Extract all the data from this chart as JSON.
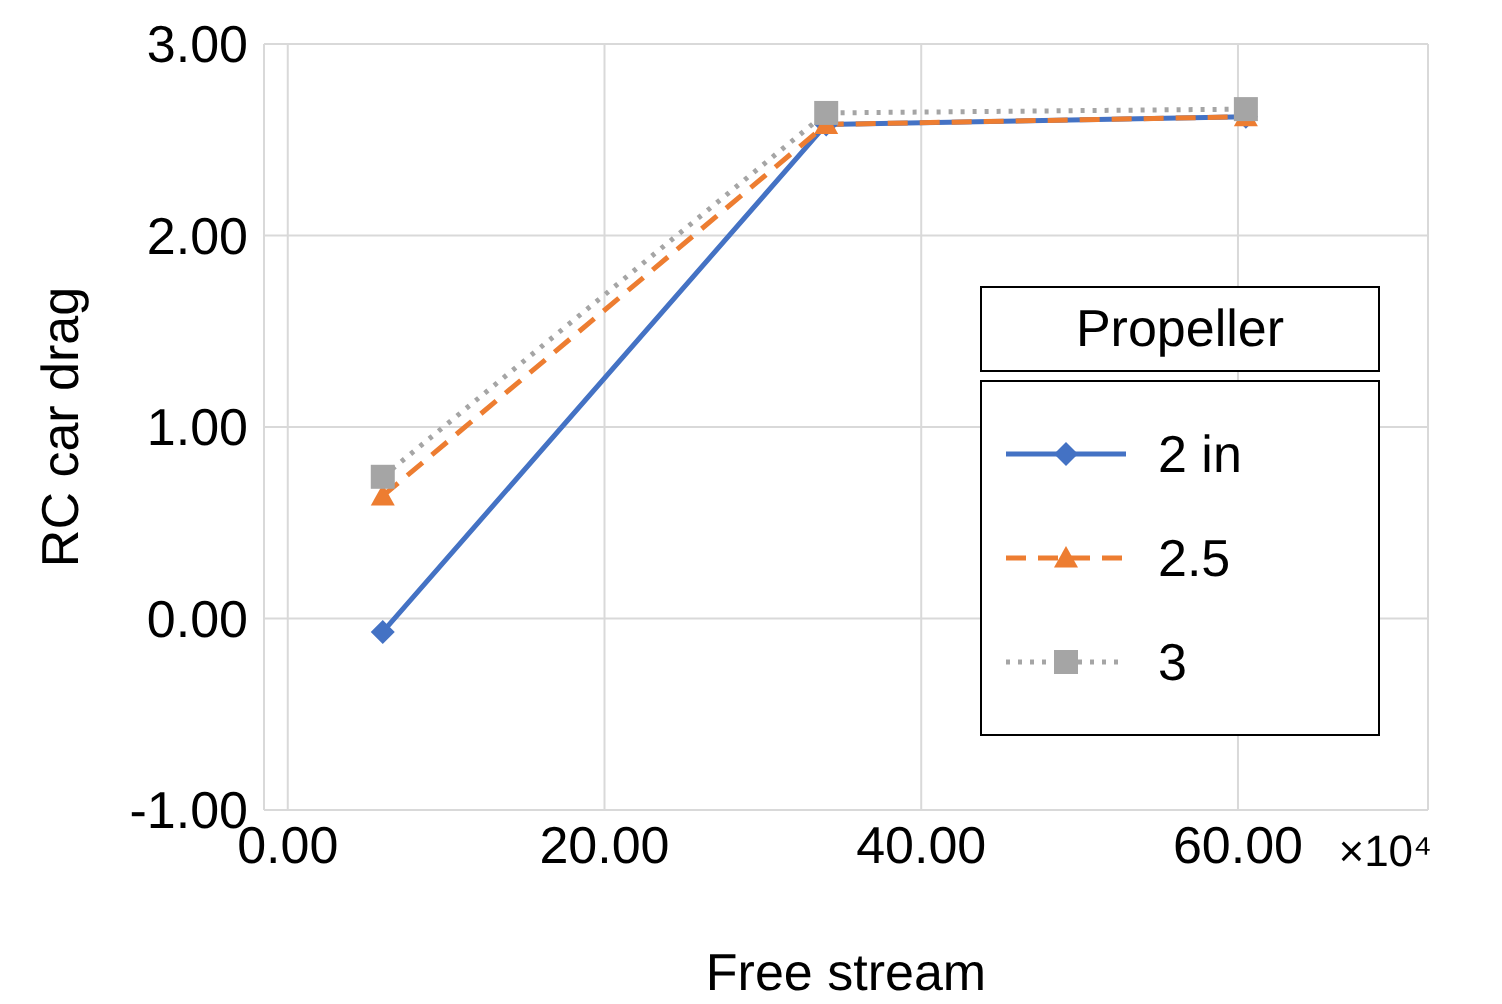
{
  "chart_data": {
    "type": "line",
    "xlabel": "Free stream",
    "ylabel": "RC car drag",
    "legend_title": "Propeller",
    "legend": "right",
    "grid": true,
    "x": [
      6,
      34,
      60.5
    ],
    "xlim": [
      -1.5,
      72
    ],
    "xticks": [
      {
        "value": 0,
        "label": "0.00"
      },
      {
        "value": 20,
        "label": "20.00"
      },
      {
        "value": 40,
        "label": "40.00"
      },
      {
        "value": 60,
        "label": "60.00"
      }
    ],
    "ylim": [
      -1,
      3
    ],
    "yticks": [
      {
        "value": -1,
        "label": "-1.00"
      },
      {
        "value": 0,
        "label": "0.00"
      },
      {
        "value": 1,
        "label": "1.00"
      },
      {
        "value": 2,
        "label": "2.00"
      },
      {
        "value": 3,
        "label": "3.00"
      }
    ],
    "annotations": [
      "×10⁴"
    ],
    "series": [
      {
        "name": "2 in",
        "color": "#4472c4",
        "marker": "diamond",
        "line_style": "solid",
        "values": [
          -0.07,
          2.58,
          2.62
        ]
      },
      {
        "name": "2.5",
        "color": "#ed7d31",
        "marker": "triangle",
        "line_style": "dashed",
        "values": [
          0.64,
          2.58,
          2.62
        ]
      },
      {
        "name": "3",
        "color": "#a5a5a5",
        "marker": "square",
        "line_style": "dotted",
        "values": [
          0.74,
          2.64,
          2.66
        ]
      }
    ]
  }
}
